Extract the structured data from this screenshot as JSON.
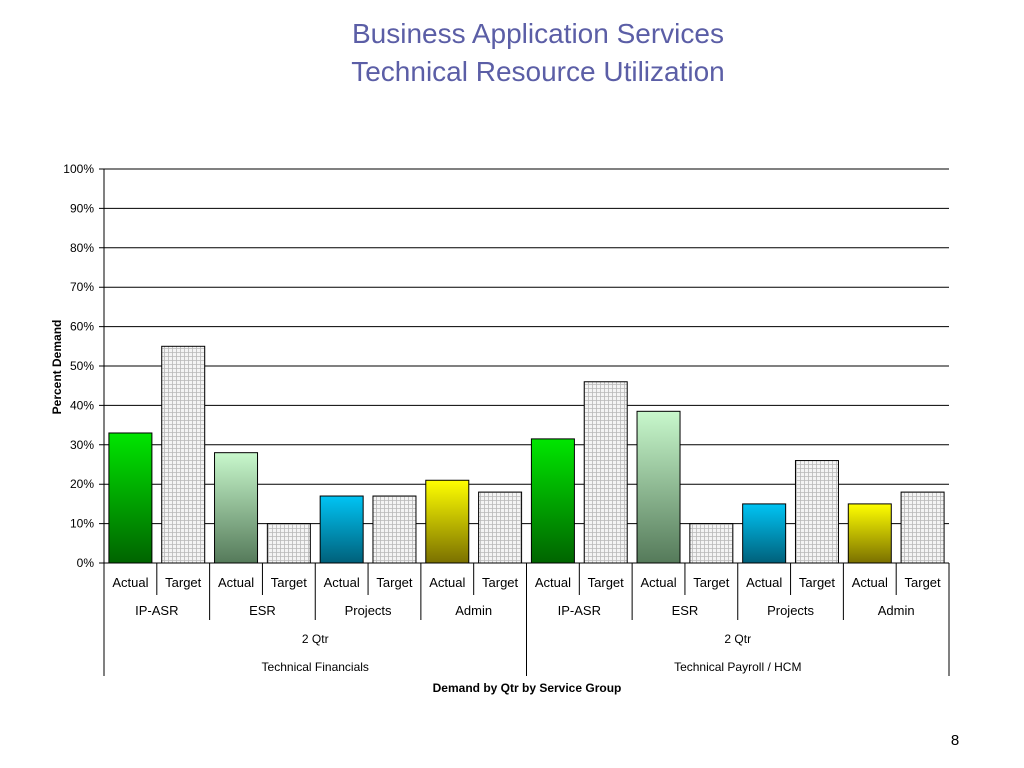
{
  "slide": {
    "title_line1": "Business Application Services",
    "title_line2": "Technical Resource Utilization",
    "page_number": "8"
  },
  "colors": {
    "title": "#5b5ea6",
    "ip_asr_actual": "#00c800",
    "esr_actual": "#a8e6b0",
    "projects_actual": "#00a8e0",
    "admin_actual": "#e8e000",
    "target_fill": "#f4f4f4",
    "target_grid": "#b8b8b8"
  },
  "chart_data": {
    "type": "bar",
    "ylabel": "Percent Demand",
    "xlabel": "Demand by Qtr by Service Group",
    "ylim": [
      0,
      100
    ],
    "yticks": [
      "0%",
      "10%",
      "20%",
      "30%",
      "40%",
      "50%",
      "60%",
      "70%",
      "80%",
      "90%",
      "100%"
    ],
    "grid": true,
    "categories": [
      "Actual",
      "Target",
      "Actual",
      "Target",
      "Actual",
      "Target",
      "Actual",
      "Target",
      "Actual",
      "Target",
      "Actual",
      "Target",
      "Actual",
      "Target",
      "Actual",
      "Target"
    ],
    "service_groups": [
      "IP-ASR",
      "ESR",
      "Projects",
      "Admin",
      "IP-ASR",
      "ESR",
      "Projects",
      "Admin"
    ],
    "quarters": [
      "2 Qtr",
      "2 Qtr"
    ],
    "divisions": [
      "Technical Financials",
      "Technical Payroll / HCM"
    ],
    "values": [
      33,
      55,
      28,
      10,
      17,
      17,
      21,
      18,
      31.5,
      46,
      38.5,
      10,
      15,
      26,
      15,
      18
    ],
    "bar_styles": [
      "ip_asr_actual",
      "target",
      "esr_actual",
      "target",
      "projects_actual",
      "target",
      "admin_actual",
      "target",
      "ip_asr_actual",
      "target",
      "esr_actual",
      "target",
      "projects_actual",
      "target",
      "admin_actual",
      "target"
    ]
  }
}
